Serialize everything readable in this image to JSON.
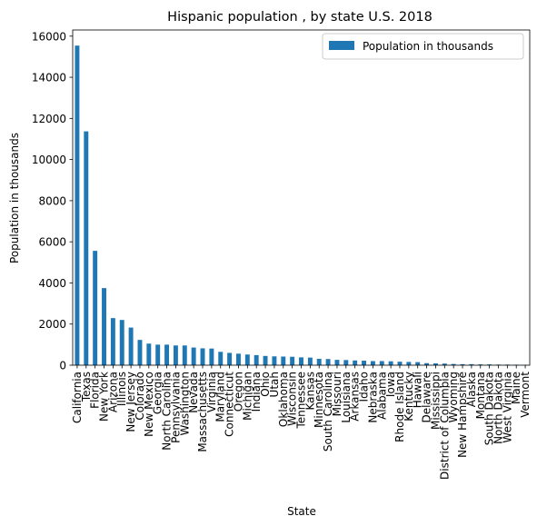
{
  "chart_data": {
    "type": "bar",
    "title": "Hispanic population , by state U.S. 2018",
    "xlabel": "State",
    "ylabel": "Population in thousands",
    "ylim": [
      0,
      16300
    ],
    "yticks": [
      0,
      2000,
      4000,
      6000,
      8000,
      10000,
      12000,
      14000,
      16000
    ],
    "grid": false,
    "legend_position": "top-right",
    "bar_color": "#1f77b4",
    "categories": [
      "California",
      "Texas",
      "Florida",
      "New York",
      "Arizona",
      "Illinois",
      "New Jersey",
      "Colorado",
      "New Mexico",
      "Georgia",
      "North Carolina",
      "Pennsylvania",
      "Washington",
      "Nevada",
      "Massachusetts",
      "Virginia",
      "Maryland",
      "Connecticut",
      "Oregon",
      "Michigan",
      "Indiana",
      "Ohio",
      "Utah",
      "Oklahoma",
      "Wisconsin",
      "Tennessee",
      "Kansas",
      "Minnesota",
      "South Carolina",
      "Missouri",
      "Louisiana",
      "Arkansas",
      "Idaho",
      "Nebraska",
      "Alabama",
      "Iowa",
      "Rhode Island",
      "Kentucky",
      "Hawaii",
      "Delaware",
      "Mississippi",
      "District of Columbia",
      "Wyoming",
      "New Hampshire",
      "Alaska",
      "Montana",
      "South Dakota",
      "North Dakota",
      "West Virginia",
      "Maine",
      "Vermont"
    ],
    "series": [
      {
        "name": "Population in thousands",
        "values": [
          15540,
          11370,
          5560,
          3750,
          2290,
          2200,
          1830,
          1230,
          1050,
          1000,
          1000,
          960,
          960,
          860,
          820,
          810,
          650,
          600,
          560,
          520,
          490,
          450,
          430,
          420,
          410,
          380,
          370,
          310,
          300,
          260,
          250,
          230,
          220,
          200,
          200,
          190,
          170,
          160,
          150,
          100,
          90,
          80,
          60,
          50,
          50,
          40,
          40,
          30,
          30,
          25,
          15
        ]
      }
    ]
  }
}
